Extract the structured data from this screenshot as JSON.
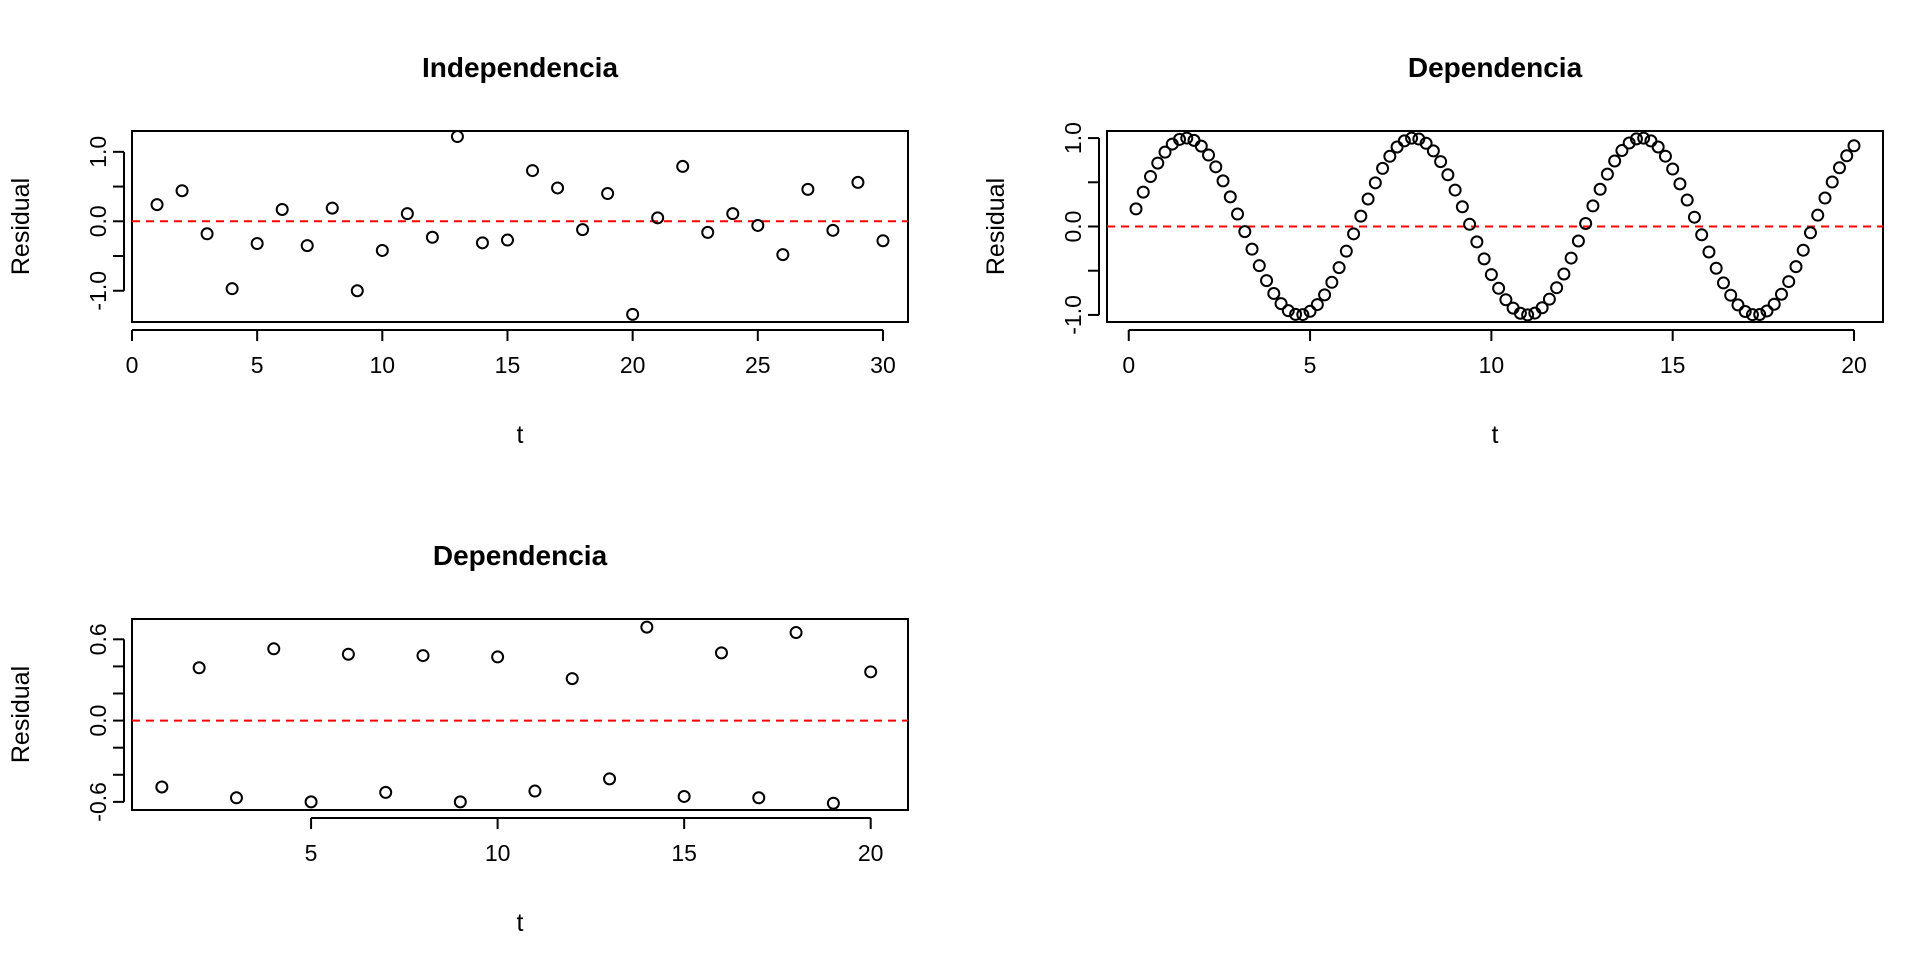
{
  "chart_data": [
    {
      "type": "scatter",
      "title": "Independencia",
      "xlabel": "t",
      "ylabel": "Residual",
      "xlim": [
        0,
        31
      ],
      "ylim": [
        -1.45,
        1.3
      ],
      "xticks": [
        0,
        5,
        10,
        15,
        20,
        25,
        30
      ],
      "yticks": [
        -1.0,
        -0.5,
        0.0,
        0.5,
        1.0
      ],
      "ytick_labels": [
        "-1.0",
        "",
        "0.0",
        "",
        "1.0"
      ],
      "hline": {
        "y": 0,
        "color": "#ff0000",
        "style": "dashed"
      },
      "grid": false,
      "x": [
        1,
        2,
        3,
        4,
        5,
        6,
        7,
        8,
        9,
        10,
        11,
        12,
        13,
        14,
        15,
        16,
        17,
        18,
        19,
        20,
        21,
        22,
        23,
        24,
        25,
        26,
        27,
        28,
        29,
        30
      ],
      "y": [
        0.24,
        0.44,
        -0.18,
        -0.97,
        -0.32,
        0.17,
        -0.35,
        0.19,
        -1.0,
        -0.42,
        0.11,
        -0.23,
        1.22,
        -0.31,
        -0.27,
        0.73,
        0.48,
        -0.12,
        0.4,
        -1.34,
        0.05,
        0.79,
        -0.16,
        0.11,
        -0.06,
        -0.48,
        0.46,
        -0.13,
        0.56,
        -0.28
      ]
    },
    {
      "type": "scatter",
      "title": "Dependencia",
      "xlabel": "t",
      "ylabel": "Residual",
      "xlim": [
        -0.6,
        20.8
      ],
      "ylim": [
        -1.08,
        1.08
      ],
      "xticks": [
        0,
        5,
        10,
        15,
        20
      ],
      "yticks": [
        -1.0,
        -0.5,
        0.0,
        0.5,
        1.0
      ],
      "ytick_labels": [
        "-1.0",
        "",
        "0.0",
        "",
        "1.0"
      ],
      "hline": {
        "y": 0,
        "color": "#ff0000",
        "style": "dashed"
      },
      "grid": false,
      "x": [
        0.2,
        0.4,
        0.6,
        0.8,
        1.0,
        1.2,
        1.4,
        1.6,
        1.8,
        2.0,
        2.2,
        2.4,
        2.6,
        2.8,
        3.0,
        3.2,
        3.4,
        3.6,
        3.8,
        4.0,
        4.2,
        4.4,
        4.6,
        4.8,
        5.0,
        5.2,
        5.4,
        5.6,
        5.8,
        6.0,
        6.2,
        6.4,
        6.6,
        6.8,
        7.0,
        7.2,
        7.4,
        7.6,
        7.8,
        8.0,
        8.2,
        8.4,
        8.6,
        8.8,
        9.0,
        9.2,
        9.4,
        9.6,
        9.8,
        10.0,
        10.2,
        10.4,
        10.6,
        10.8,
        11.0,
        11.2,
        11.4,
        11.6,
        11.8,
        12.0,
        12.2,
        12.4,
        12.6,
        12.8,
        13.0,
        13.2,
        13.4,
        13.6,
        13.8,
        14.0,
        14.2,
        14.4,
        14.6,
        14.8,
        15.0,
        15.2,
        15.4,
        15.6,
        15.8,
        16.0,
        16.2,
        16.4,
        16.6,
        16.8,
        17.0,
        17.2,
        17.4,
        17.6,
        17.8,
        18.0,
        18.2,
        18.4,
        18.6,
        18.8,
        19.0,
        19.2,
        19.4,
        19.6,
        19.8,
        20.0
      ],
      "y": [
        0.199,
        0.389,
        0.565,
        0.717,
        0.841,
        0.932,
        0.985,
        1.0,
        0.974,
        0.909,
        0.808,
        0.675,
        0.516,
        0.335,
        0.141,
        -0.058,
        -0.256,
        -0.443,
        -0.612,
        -0.757,
        -0.872,
        -0.952,
        -0.994,
        -0.996,
        -0.959,
        -0.883,
        -0.773,
        -0.631,
        -0.465,
        -0.279,
        -0.083,
        0.117,
        0.311,
        0.494,
        0.657,
        0.794,
        0.899,
        0.968,
        0.999,
        0.989,
        0.941,
        0.855,
        0.734,
        0.585,
        0.412,
        0.223,
        0.025,
        -0.174,
        -0.366,
        -0.544,
        -0.699,
        -0.828,
        -0.923,
        -0.981,
        -1.0,
        -0.979,
        -0.919,
        -0.822,
        -0.692,
        -0.537,
        -0.357,
        -0.164,
        0.034,
        0.233,
        0.421,
        0.592,
        0.741,
        0.859,
        0.944,
        0.991,
        0.999,
        0.968,
        0.899,
        0.795,
        0.65,
        0.482,
        0.299,
        0.105,
        -0.094,
        -0.288,
        -0.472,
        -0.638,
        -0.777,
        -0.887,
        -0.961,
        -0.997,
        -0.995,
        -0.955,
        -0.879,
        -0.766,
        -0.623,
        -0.454,
        -0.268,
        -0.071,
        0.128,
        0.322,
        0.503,
        0.664,
        0.8,
        0.913
      ]
    },
    {
      "type": "scatter",
      "title": "Dependencia",
      "xlabel": "t",
      "ylabel": "Residual",
      "xlim": [
        0.2,
        21.0
      ],
      "ylim": [
        -0.66,
        0.75
      ],
      "xticks": [
        5,
        10,
        15,
        20
      ],
      "yticks": [
        -0.6,
        -0.4,
        -0.2,
        0.0,
        0.2,
        0.4,
        0.6
      ],
      "ytick_labels": [
        "-0.6",
        "",
        "",
        "0.0",
        "",
        "",
        "0.6"
      ],
      "hline": {
        "y": 0,
        "color": "#ff0000",
        "style": "dashed"
      },
      "grid": false,
      "x": [
        1,
        2,
        3,
        4,
        5,
        6,
        7,
        8,
        9,
        10,
        11,
        12,
        13,
        14,
        15,
        16,
        17,
        18,
        19,
        20
      ],
      "y": [
        -0.49,
        0.39,
        -0.57,
        0.53,
        -0.6,
        0.49,
        -0.53,
        0.48,
        -0.6,
        0.47,
        -0.52,
        0.31,
        -0.43,
        0.69,
        -0.56,
        0.5,
        -0.57,
        0.65,
        -0.61,
        0.36
      ]
    }
  ],
  "colors": {
    "points": "#000000",
    "reference_line": "#ff0000"
  }
}
